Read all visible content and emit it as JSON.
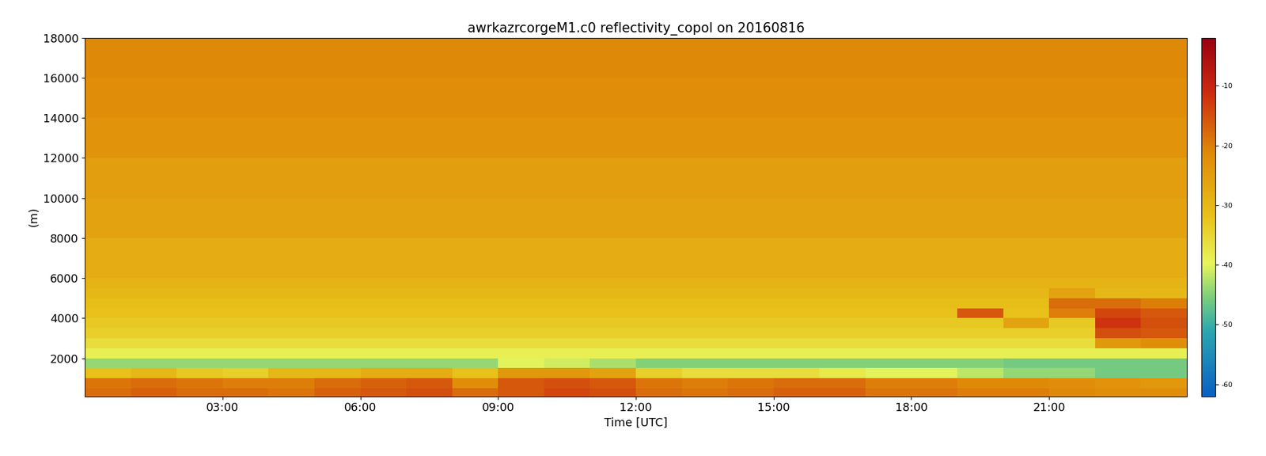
{
  "chart_data": {
    "type": "heatmap",
    "title": "awrkazrcorgeM1.c0 reflectivity_copol on 20160816",
    "x_label": "Time [UTC]",
    "y_label": "(m)",
    "xlim": [
      0,
      24
    ],
    "xticks": [
      {
        "value": 3,
        "label": "03:00"
      },
      {
        "value": 6,
        "label": "06:00"
      },
      {
        "value": 9,
        "label": "09:00"
      },
      {
        "value": 12,
        "label": "12:00"
      },
      {
        "value": 15,
        "label": "15:00"
      },
      {
        "value": 18,
        "label": "18:00"
      },
      {
        "value": 21,
        "label": "21:00"
      }
    ],
    "ylim": [
      100,
      18000
    ],
    "yticks": [
      2000,
      4000,
      6000,
      8000,
      10000,
      12000,
      14000,
      16000,
      18000
    ],
    "x_edges": [
      0,
      1,
      2,
      3,
      4,
      5,
      6,
      7,
      8,
      9,
      10,
      11,
      12,
      13,
      14,
      15,
      16,
      17,
      18,
      19,
      20,
      21,
      22,
      23,
      24
    ],
    "y_edges": [
      100,
      500,
      1000,
      1500,
      2000,
      2500,
      3000,
      3500,
      4000,
      4500,
      5000,
      5500,
      6000,
      8000,
      10000,
      12000,
      14000,
      16000,
      18000
    ],
    "cells": [
      [
        -18,
        -17,
        -18,
        -18,
        -19,
        -17,
        -16,
        -15,
        -18,
        -16,
        -14,
        -15,
        -18,
        -19,
        -18,
        -17,
        -17,
        -19,
        -19,
        -20,
        -20,
        -21,
        -22,
        -22
      ],
      [
        -19,
        -18,
        -19,
        -20,
        -20,
        -18,
        -17,
        -16,
        -22,
        -16,
        -15,
        -16,
        -19,
        -20,
        -19,
        -18,
        -18,
        -20,
        -20,
        -21,
        -21,
        -22,
        -23,
        -24
      ],
      [
        -32,
        -30,
        -33,
        -34,
        -30,
        -30,
        -28,
        -28,
        -32,
        -24,
        -24,
        -26,
        -34,
        -36,
        -36,
        -36,
        -38,
        -40,
        -40,
        -42,
        -44,
        -44,
        -46,
        -46
      ],
      [
        -44,
        -44,
        -44,
        -44,
        -44,
        -44,
        -44,
        -44,
        -44,
        -40,
        -41,
        -43,
        -45,
        -45,
        -45,
        -45,
        -45,
        -45,
        -45,
        -45,
        -46,
        -46,
        -46,
        -46
      ],
      [
        -39,
        -39,
        -39,
        -39,
        -39,
        -39,
        -39,
        -39,
        -39,
        -39,
        -39,
        -39,
        -39,
        -39,
        -39,
        -39,
        -39,
        -39,
        -39,
        -39,
        -39,
        -39,
        -39,
        -39
      ],
      [
        -36,
        -36,
        -36,
        -36,
        -36,
        -36,
        -36,
        -36,
        -36,
        -36,
        -36,
        -36,
        -36,
        -36,
        -36,
        -36,
        -36,
        -36,
        -36,
        -36,
        -36,
        -36,
        -24,
        -22
      ],
      [
        -34,
        -34,
        -34,
        -34,
        -34,
        -34,
        -34,
        -34,
        -34,
        -34,
        -34,
        -34,
        -34,
        -34,
        -34,
        -34,
        -34,
        -34,
        -34,
        -34,
        -34,
        -34,
        -15,
        -16
      ],
      [
        -33,
        -33,
        -33,
        -33,
        -33,
        -33,
        -33,
        -33,
        -33,
        -33,
        -33,
        -33,
        -33,
        -33,
        -33,
        -33,
        -33,
        -33,
        -33,
        -33,
        -26,
        -33,
        -12,
        -15
      ],
      [
        -32,
        -32,
        -32,
        -32,
        -32,
        -32,
        -32,
        -32,
        -32,
        -32,
        -32,
        -32,
        -32,
        -32,
        -32,
        -32,
        -32,
        -32,
        -32,
        -16,
        -32,
        -20,
        -14,
        -16
      ],
      [
        -31,
        -31,
        -31,
        -31,
        -31,
        -31,
        -31,
        -31,
        -31,
        -31,
        -31,
        -31,
        -31,
        -31,
        -31,
        -31,
        -31,
        -31,
        -31,
        -31,
        -31,
        -18,
        -18,
        -20
      ],
      [
        -30,
        -30,
        -30,
        -30,
        -30,
        -30,
        -30,
        -30,
        -30,
        -30,
        -30,
        -30,
        -30,
        -30,
        -30,
        -30,
        -30,
        -30,
        -30,
        -30,
        -30,
        -26,
        -30,
        -30
      ],
      [
        -29,
        -29,
        -29,
        -29,
        -29,
        -29,
        -29,
        -29,
        -29,
        -29,
        -29,
        -29,
        -29,
        -29,
        -29,
        -29,
        -29,
        -29,
        -29,
        -29,
        -29,
        -29,
        -29,
        -29
      ],
      [
        -28,
        -28,
        -28,
        -28,
        -28,
        -28,
        -28,
        -28,
        -28,
        -28,
        -28,
        -28,
        -28,
        -28,
        -28,
        -28,
        -28,
        -28,
        -28,
        -28,
        -28,
        -28,
        -28,
        -28
      ],
      [
        -26,
        -26,
        -26,
        -26,
        -26,
        -26,
        -26,
        -26,
        -26,
        -26,
        -26,
        -26,
        -26,
        -26,
        -26,
        -26,
        -26,
        -26,
        -26,
        -26,
        -26,
        -26,
        -26,
        -26
      ],
      [
        -25,
        -25,
        -25,
        -25,
        -25,
        -25,
        -25,
        -25,
        -25,
        -25,
        -25,
        -25,
        -25,
        -25,
        -25,
        -25,
        -25,
        -25,
        -25,
        -25,
        -25,
        -25,
        -25,
        -25
      ],
      [
        -23,
        -23,
        -23,
        -23,
        -23,
        -23,
        -23,
        -23,
        -23,
        -23,
        -23,
        -23,
        -23,
        -23,
        -23,
        -23,
        -23,
        -23,
        -23,
        -23,
        -23,
        -23,
        -23,
        -23
      ],
      [
        -22,
        -22,
        -22,
        -22,
        -22,
        -22,
        -22,
        -22,
        -22,
        -22,
        -22,
        -22,
        -22,
        -22,
        -22,
        -22,
        -22,
        -22,
        -22,
        -22,
        -22,
        -22,
        -22,
        -22
      ],
      [
        -21,
        -21,
        -21,
        -21,
        -21,
        -21,
        -21,
        -21,
        -21,
        -21,
        -21,
        -21,
        -21,
        -21,
        -21,
        -21,
        -21,
        -21,
        -21,
        -21,
        -21,
        -21,
        -21,
        -21
      ]
    ],
    "clim": [
      -62,
      -2
    ],
    "cticks": [
      -60,
      -50,
      -40,
      -30,
      -20,
      -10
    ]
  }
}
